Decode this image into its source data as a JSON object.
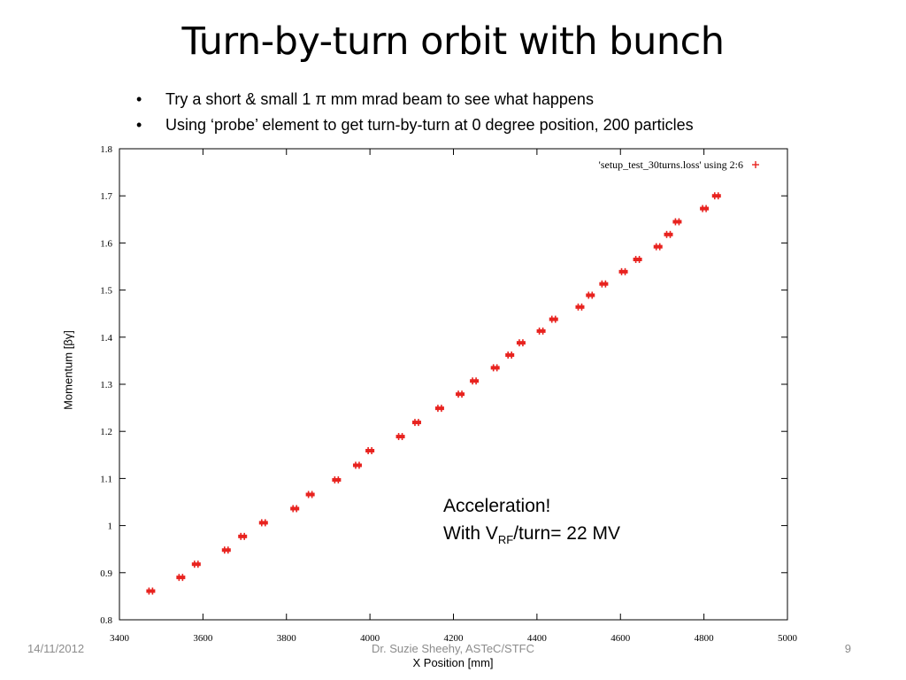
{
  "slide": {
    "title": "Turn-by-turn orbit with bunch",
    "bullets": [
      "Try a short & small 1 π mm mrad beam to see what happens",
      "Using ‘probe’ element to get turn-by-turn at 0 degree position, 200 particles"
    ],
    "annotation": {
      "line1": "Acceleration!",
      "line2_prefix": "With V",
      "line2_sub": "RF",
      "line2_suffix": "/turn= 22 MV"
    },
    "footer": {
      "date": "14/11/2012",
      "author": "Dr. Suzie Sheehy, ASTeC/STFC",
      "page": "9"
    }
  },
  "chart_data": {
    "type": "scatter",
    "xlabel": "X Position [mm]",
    "ylabel": "Momentum [βγ]",
    "xlim": [
      3400,
      5000
    ],
    "ylim": [
      0.8,
      1.8
    ],
    "x_ticks": [
      "3400",
      "3600",
      "3800",
      "4000",
      "4200",
      "4400",
      "4600",
      "4800",
      "5000"
    ],
    "y_ticks": [
      "0.8",
      "0.9",
      "1",
      "1.1",
      "1.2",
      "1.3",
      "1.4",
      "1.5",
      "1.6",
      "1.7",
      "1.8"
    ],
    "grid": false,
    "legend_position": "top-right",
    "marker_color": "#e8231f",
    "series": [
      {
        "name": "'setup_test_30turns.loss' using 2:6",
        "x": [
          3475,
          3547,
          3584,
          3656,
          3695,
          3745,
          3820,
          3857,
          3920,
          3970,
          4000,
          4073,
          4112,
          4167,
          4216,
          4250,
          4300,
          4335,
          4362,
          4410,
          4440,
          4503,
          4528,
          4560,
          4607,
          4641,
          4690,
          4715,
          4736,
          4801,
          4830
        ],
        "y": [
          0.861,
          0.89,
          0.918,
          0.948,
          0.977,
          1.006,
          1.036,
          1.066,
          1.097,
          1.128,
          1.159,
          1.189,
          1.219,
          1.249,
          1.279,
          1.307,
          1.335,
          1.362,
          1.388,
          1.413,
          1.438,
          1.464,
          1.489,
          1.513,
          1.539,
          1.565,
          1.592,
          1.618,
          1.645,
          1.673,
          1.7
        ]
      }
    ]
  }
}
